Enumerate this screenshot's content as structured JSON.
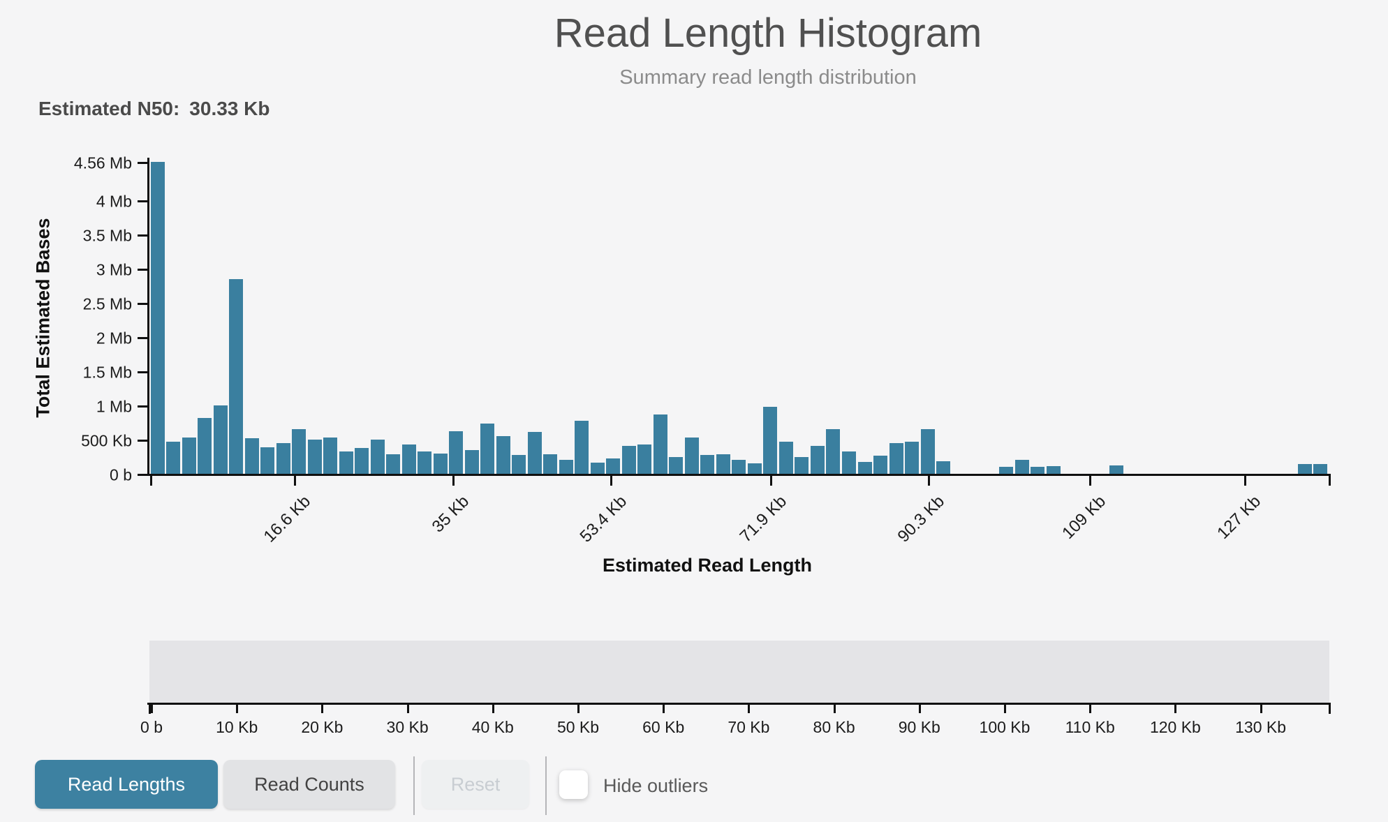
{
  "header": {
    "title": "Read Length Histogram",
    "subtitle": "Summary read length distribution"
  },
  "n50": {
    "label": "Estimated N50:",
    "value": "30.33 Kb"
  },
  "chart_data": {
    "type": "bar",
    "title": "Read Length Histogram",
    "subtitle": "Summary read length distribution",
    "xlabel": "Estimated Read Length",
    "ylabel": "Total Estimated Bases",
    "grid": false,
    "legend": false,
    "x_start_kb": 0,
    "x_max_kb": 138,
    "bin_width_kb": 1.85,
    "ylim_mb": [
      0,
      4.56
    ],
    "values_total_bases_kb": [
      4560,
      475,
      533,
      816,
      1000,
      2850,
      516,
      391,
      452,
      656,
      500,
      534,
      330,
      374,
      500,
      289,
      432,
      330,
      296,
      620,
      347,
      734,
      551,
      271,
      612,
      289,
      207,
      778,
      166,
      227,
      404,
      434,
      863,
      245,
      530,
      278,
      289,
      207,
      149,
      979,
      469,
      248,
      408,
      653,
      326,
      173,
      268,
      452,
      472,
      653,
      187,
      0,
      0,
      0,
      102,
      204,
      102,
      110,
      0,
      0,
      0,
      120,
      0,
      0,
      0,
      0,
      0,
      0,
      0,
      0,
      0,
      0,
      0,
      146,
      146
    ],
    "y_ticks": [
      {
        "label": "4.56 Mb",
        "mb": 4.56
      },
      {
        "label": "4 Mb",
        "mb": 4.0
      },
      {
        "label": "3.5 Mb",
        "mb": 3.5
      },
      {
        "label": "3 Mb",
        "mb": 3.0
      },
      {
        "label": "2.5 Mb",
        "mb": 2.5
      },
      {
        "label": "2 Mb",
        "mb": 2.0
      },
      {
        "label": "1.5 Mb",
        "mb": 1.5
      },
      {
        "label": "1 Mb",
        "mb": 1.0
      },
      {
        "label": "500 Kb",
        "mb": 0.5
      },
      {
        "label": "0 b",
        "mb": 0
      }
    ],
    "x_ticks": [
      {
        "label": "16.6 Kb",
        "kb": 16.6
      },
      {
        "label": "35 Kb",
        "kb": 35
      },
      {
        "label": "53.4 Kb",
        "kb": 53.4
      },
      {
        "label": "71.9 Kb",
        "kb": 71.9
      },
      {
        "label": "90.3 Kb",
        "kb": 90.3
      },
      {
        "label": "109 Kb",
        "kb": 109
      },
      {
        "label": "127 Kb",
        "kb": 127
      }
    ]
  },
  "minimap": {
    "ticks": [
      {
        "label": "0 b",
        "kb": 0
      },
      {
        "label": "10 Kb",
        "kb": 10
      },
      {
        "label": "20 Kb",
        "kb": 20
      },
      {
        "label": "30 Kb",
        "kb": 30
      },
      {
        "label": "40 Kb",
        "kb": 40
      },
      {
        "label": "50 Kb",
        "kb": 50
      },
      {
        "label": "60 Kb",
        "kb": 60
      },
      {
        "label": "70 Kb",
        "kb": 70
      },
      {
        "label": "80 Kb",
        "kb": 80
      },
      {
        "label": "90 Kb",
        "kb": 90
      },
      {
        "label": "100 Kb",
        "kb": 100
      },
      {
        "label": "110 Kb",
        "kb": 110
      },
      {
        "label": "120 Kb",
        "kb": 120
      },
      {
        "label": "130 Kb",
        "kb": 130
      }
    ]
  },
  "controls": {
    "read_lengths": "Read Lengths",
    "read_counts": "Read Counts",
    "reset": "Reset",
    "hide_outliers": "Hide outliers",
    "hide_outliers_checked": false
  },
  "colors": {
    "bar": "#3a7f9f",
    "active_button": "#3d81a1",
    "brush_area": "#e4e4e7",
    "background": "#f5f5f6"
  }
}
